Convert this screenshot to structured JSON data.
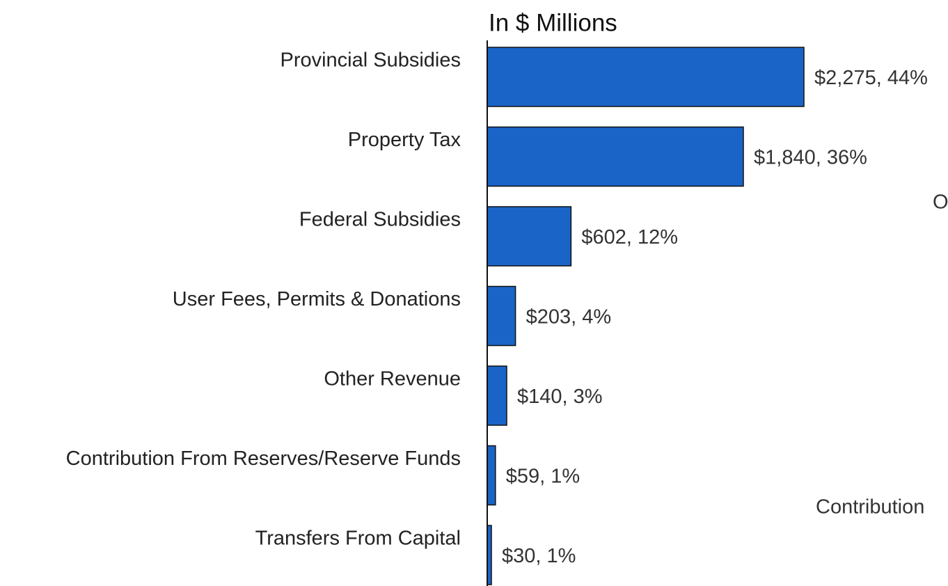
{
  "chart_data": {
    "type": "bar",
    "orientation": "horizontal",
    "title": "In $ Millions",
    "categories": [
      "Provincial Subsidies",
      "Property Tax",
      "Federal Subsidies",
      "User Fees, Permits & Donations",
      "Other Revenue",
      "Contribution From Reserves/Reserve Funds",
      "Transfers From Capital"
    ],
    "values": [
      2275,
      1840,
      602,
      203,
      140,
      59,
      30
    ],
    "value_labels": [
      "$2,275, 44%",
      "$1,840, 36%",
      "$602, 12%",
      "$203, 4%",
      "$140, 3%",
      "$59, 1%",
      "$30, 1%"
    ],
    "color": "#1a64c8",
    "xlim": [
      0,
      2500
    ],
    "annotations": [
      "O",
      "Contribution"
    ]
  }
}
